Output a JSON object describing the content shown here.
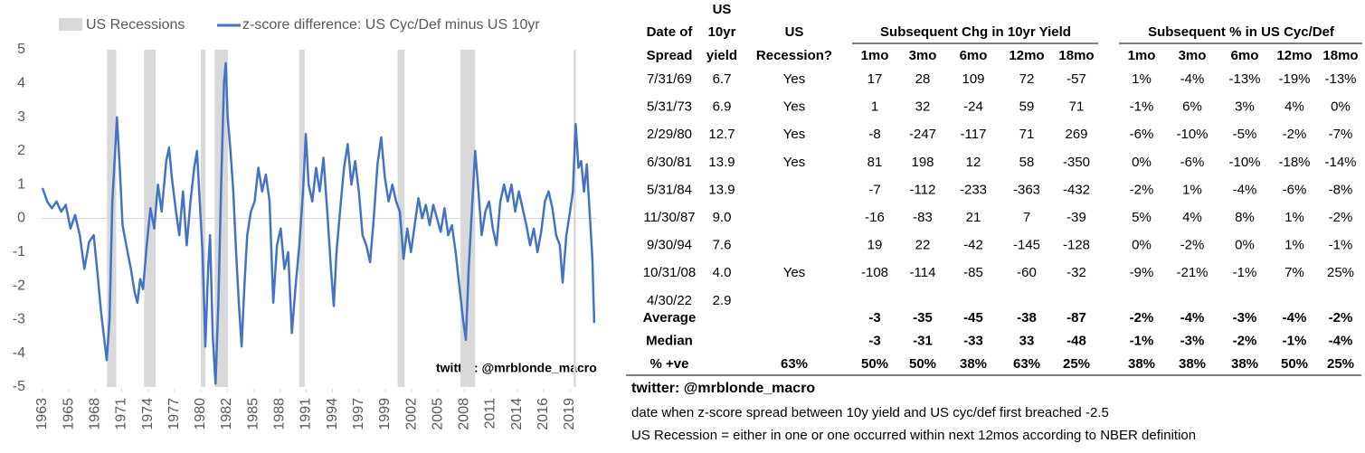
{
  "chart_data": {
    "type": "line",
    "legend": "top",
    "annotation": "twitter: @mrblonde_macro",
    "recessions": {
      "name": "US Recessions",
      "color": "#d9d9d9",
      "ranges": [
        [
          1969.92,
          1970.92
        ],
        [
          1973.92,
          1975.17
        ],
        [
          1980.0,
          1980.5
        ],
        [
          1981.5,
          1982.92
        ],
        [
          1990.58,
          1991.17
        ],
        [
          2001.17,
          2001.92
        ],
        [
          2007.92,
          2009.5
        ],
        [
          2020.08,
          2020.33
        ]
      ]
    },
    "series": [
      {
        "name": "z-score difference: US Cyc/Def minus US 10yr",
        "color": "#4472c4",
        "x": [
          1963.0,
          1963.5,
          1964.0,
          1964.5,
          1965.0,
          1965.5,
          1966.0,
          1966.5,
          1967.0,
          1967.5,
          1968.0,
          1968.5,
          1968.9,
          1969.3,
          1969.6,
          1969.9,
          1970.2,
          1970.5,
          1970.8,
          1971.0,
          1971.3,
          1971.6,
          1972.0,
          1972.5,
          1972.9,
          1973.2,
          1973.5,
          1973.8,
          1974.2,
          1974.6,
          1975.0,
          1975.4,
          1975.8,
          1976.3,
          1976.6,
          1976.9,
          1977.3,
          1977.7,
          1978.1,
          1978.5,
          1978.9,
          1979.3,
          1979.6,
          1979.9,
          1980.2,
          1980.5,
          1980.8,
          1981.0,
          1981.3,
          1981.6,
          1981.9,
          1982.2,
          1982.5,
          1982.7,
          1982.9,
          1983.2,
          1983.5,
          1983.8,
          1984.1,
          1984.4,
          1984.7,
          1985.0,
          1985.4,
          1985.8,
          1986.2,
          1986.6,
          1987.0,
          1987.4,
          1987.8,
          1988.2,
          1988.6,
          1989.0,
          1989.4,
          1989.8,
          1990.2,
          1990.6,
          1991.0,
          1991.3,
          1991.6,
          1992.0,
          1992.4,
          1992.8,
          1993.2,
          1993.6,
          1994.0,
          1994.3,
          1994.6,
          1995.0,
          1995.4,
          1995.8,
          1996.2,
          1996.6,
          1997.0,
          1997.4,
          1997.8,
          1998.2,
          1998.6,
          1999.0,
          1999.4,
          1999.8,
          2000.2,
          2000.6,
          2001.0,
          2001.4,
          2001.8,
          2002.2,
          2002.6,
          2003.0,
          2003.4,
          2003.8,
          2004.2,
          2004.6,
          2005.0,
          2005.4,
          2005.8,
          2006.2,
          2006.6,
          2007.0,
          2007.4,
          2007.8,
          2008.2,
          2008.5,
          2008.8,
          2009.2,
          2009.5,
          2009.8,
          2010.2,
          2010.6,
          2011.0,
          2011.4,
          2011.8,
          2012.2,
          2012.6,
          2013.0,
          2013.4,
          2013.8,
          2014.2,
          2014.6,
          2015.0,
          2015.4,
          2015.8,
          2016.2,
          2016.6,
          2017.0,
          2017.4,
          2017.8,
          2018.2,
          2018.6,
          2018.9,
          2019.3,
          2019.7,
          2020.0,
          2020.3,
          2020.6,
          2020.9,
          2021.2,
          2021.5,
          2021.8,
          2022.1,
          2022.3
        ],
        "values": [
          0.9,
          0.5,
          0.3,
          0.5,
          0.2,
          0.4,
          -0.3,
          0.1,
          -0.5,
          -1.5,
          -0.7,
          -0.5,
          -1.6,
          -2.8,
          -3.5,
          -4.2,
          -3.0,
          0.5,
          2.0,
          3.0,
          1.5,
          -0.2,
          -0.8,
          -1.5,
          -2.2,
          -2.5,
          -1.8,
          -2.1,
          -0.8,
          0.3,
          -0.3,
          1.0,
          0.2,
          1.7,
          2.1,
          1.2,
          0.3,
          -0.5,
          0.8,
          -0.8,
          0.5,
          1.5,
          2.0,
          0.5,
          -1.0,
          -3.8,
          -1.5,
          -0.5,
          -3.5,
          -4.9,
          -2.5,
          1.0,
          4.0,
          4.6,
          3.0,
          2.0,
          0.8,
          -1.0,
          -2.5,
          -3.8,
          -2.0,
          -0.5,
          0.2,
          0.5,
          1.5,
          0.8,
          1.3,
          0.5,
          -2.5,
          -0.8,
          -0.3,
          -1.5,
          -1.0,
          -3.4,
          -2.0,
          -0.8,
          0.8,
          2.5,
          1.0,
          0.5,
          1.5,
          0.8,
          1.8,
          0.2,
          -1.5,
          -2.6,
          -1.0,
          0.3,
          1.5,
          2.2,
          1.0,
          1.7,
          0.8,
          -0.5,
          -0.8,
          -1.3,
          0.0,
          1.6,
          2.4,
          1.2,
          0.5,
          1.0,
          0.5,
          0.2,
          -1.2,
          -0.3,
          -1.0,
          -0.2,
          0.6,
          0.0,
          0.4,
          -0.2,
          0.4,
          0.0,
          -0.4,
          0.3,
          -0.5,
          -0.2,
          -1.0,
          -2.0,
          -3.0,
          -3.6,
          -1.5,
          0.5,
          2.0,
          1.0,
          -0.5,
          0.2,
          0.5,
          -0.3,
          -0.8,
          0.5,
          1.0,
          0.5,
          1.0,
          0.2,
          0.8,
          0.3,
          -0.2,
          -0.8,
          -0.3,
          -1.0,
          -0.4,
          0.5,
          0.8,
          0.3,
          -0.5,
          -0.8,
          -1.9,
          -0.5,
          0.2,
          0.8,
          2.8,
          1.5,
          1.7,
          0.8,
          1.6,
          0.2,
          -1.2,
          -3.1
        ]
      }
    ],
    "xlim": [
      1962.9,
      2022.5
    ],
    "xticks": [
      {
        "value": 1963.0,
        "label": "1963"
      },
      {
        "value": 1965.83,
        "label": "1965"
      },
      {
        "value": 1968.67,
        "label": "1968"
      },
      {
        "value": 1971.5,
        "label": "1971"
      },
      {
        "value": 1974.33,
        "label": "1974"
      },
      {
        "value": 1977.17,
        "label": "1977"
      },
      {
        "value": 1980.0,
        "label": "1980"
      },
      {
        "value": 1982.83,
        "label": "1982"
      },
      {
        "value": 1985.67,
        "label": "1985"
      },
      {
        "value": 1988.5,
        "label": "1988"
      },
      {
        "value": 1991.33,
        "label": "1991"
      },
      {
        "value": 1994.17,
        "label": "1994"
      },
      {
        "value": 1997.0,
        "label": "1997"
      },
      {
        "value": 1999.83,
        "label": "1999"
      },
      {
        "value": 2002.67,
        "label": "2002"
      },
      {
        "value": 2005.5,
        "label": "2005"
      },
      {
        "value": 2008.33,
        "label": "2008"
      },
      {
        "value": 2011.17,
        "label": "2011"
      },
      {
        "value": 2014.0,
        "label": "2014"
      },
      {
        "value": 2016.83,
        "label": "2016"
      },
      {
        "value": 2019.67,
        "label": "2019"
      }
    ],
    "ylim": [
      -5,
      5
    ],
    "yticks": [
      -5,
      -4,
      -3,
      -2,
      -1,
      0,
      1,
      2,
      3,
      4,
      5
    ]
  },
  "table": {
    "columns": [
      [
        "Date of",
        "Spread"
      ],
      [
        "US",
        "10yr",
        "yield"
      ],
      [
        "US",
        "Recession?"
      ]
    ],
    "groups": [
      {
        "label": "Subsequent Chg in 10yr Yield",
        "subcolumns": [
          "1mo",
          "3mo",
          "6mo",
          "12mo",
          "18mo"
        ]
      },
      {
        "label": "Subsequent % in US Cyc/Def",
        "subcolumns": [
          "1mo",
          "3mo",
          "6mo",
          "12mo",
          "18mo"
        ]
      }
    ],
    "rows": [
      [
        "7/31/69",
        "6.7",
        "Yes",
        "17",
        "28",
        "109",
        "72",
        "-57",
        "1%",
        "-4%",
        "-13%",
        "-19%",
        "-13%"
      ],
      [
        "5/31/73",
        "6.9",
        "Yes",
        "1",
        "32",
        "-24",
        "59",
        "71",
        "-1%",
        "6%",
        "3%",
        "4%",
        "0%"
      ],
      [
        "2/29/80",
        "12.7",
        "Yes",
        "-8",
        "-247",
        "-117",
        "71",
        "269",
        "-6%",
        "-10%",
        "-5%",
        "-2%",
        "-7%"
      ],
      [
        "6/30/81",
        "13.9",
        "Yes",
        "81",
        "198",
        "12",
        "58",
        "-350",
        "0%",
        "-6%",
        "-10%",
        "-18%",
        "-14%"
      ],
      [
        "5/31/84",
        "13.9",
        null,
        "-7",
        "-112",
        "-233",
        "-363",
        "-432",
        "-2%",
        "1%",
        "-4%",
        "-6%",
        "-8%"
      ],
      [
        "11/30/87",
        "9.0",
        null,
        "-16",
        "-83",
        "21",
        "7",
        "-39",
        "5%",
        "4%",
        "8%",
        "1%",
        "-2%"
      ],
      [
        "9/30/94",
        "7.6",
        null,
        "19",
        "22",
        "-42",
        "-145",
        "-128",
        "0%",
        "-2%",
        "0%",
        "1%",
        "-1%"
      ],
      [
        "10/31/08",
        "4.0",
        "Yes",
        "-108",
        "-114",
        "-85",
        "-60",
        "-32",
        "-9%",
        "-21%",
        "-1%",
        "7%",
        "25%"
      ],
      [
        "4/30/22",
        "2.9",
        null,
        null,
        null,
        null,
        null,
        null,
        null,
        null,
        null,
        null,
        null
      ]
    ],
    "summary": [
      [
        "Average",
        null,
        null,
        "-3",
        "-35",
        "-45",
        "-38",
        "-87",
        "-2%",
        "-4%",
        "-3%",
        "-4%",
        "-2%"
      ],
      [
        "Median",
        null,
        null,
        "-3",
        "-31",
        "-33",
        "33",
        "-48",
        "-1%",
        "-3%",
        "-2%",
        "-1%",
        "-4%"
      ],
      [
        "% +ve",
        null,
        "63%",
        "50%",
        "50%",
        "38%",
        "63%",
        "25%",
        "38%",
        "38%",
        "38%",
        "50%",
        "25%"
      ]
    ]
  },
  "footer": {
    "credit": "twitter: @mrblonde_macro",
    "notes": [
      "date when z-score spread between 10y yield and US cyc/def first breached -2.5",
      "US Recession = either in one or one occurred within next 12mos according to NBER definition"
    ]
  }
}
